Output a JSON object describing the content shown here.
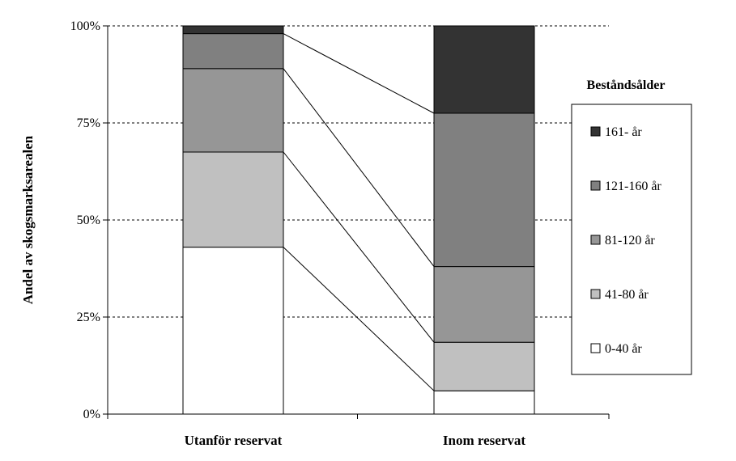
{
  "chart_data": {
    "type": "bar",
    "stacked": true,
    "percent": true,
    "categories": [
      "Utanför reservat",
      "Inom reservat"
    ],
    "series": [
      {
        "name": "0-40 år",
        "color": "#ffffff",
        "values": [
          43,
          6
        ]
      },
      {
        "name": "41-80 år",
        "color": "#c0c0c0",
        "values": [
          24.5,
          12.5
        ]
      },
      {
        "name": "81-120 år",
        "color": "#969696",
        "values": [
          21.5,
          19.5
        ]
      },
      {
        "name": "121-160 år",
        "color": "#808080",
        "values": [
          9,
          39.5
        ]
      },
      {
        "name": "161- år",
        "color": "#333333",
        "values": [
          2,
          22.5
        ]
      }
    ],
    "ylabel": "Andel av skogsmarksarealen",
    "ylim": [
      0,
      100
    ],
    "yticks": [
      "0%",
      "25%",
      "50%",
      "75%",
      "100%"
    ],
    "ytick_values": [
      0,
      25,
      50,
      75,
      100
    ],
    "grid": true,
    "series_lines": true,
    "legend": {
      "title": "Beståndsålder",
      "position": "right"
    }
  }
}
